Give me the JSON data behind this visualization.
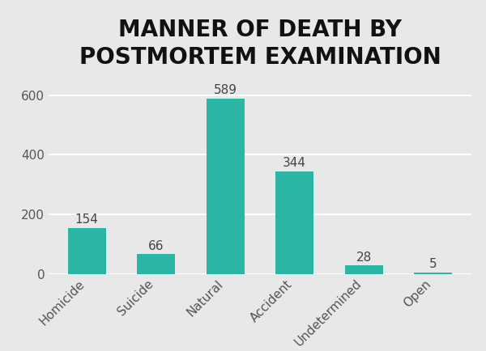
{
  "title_line1": "MANNER OF DEATH BY",
  "title_line2": "POSTMORTEM EXAMINATION",
  "categories": [
    "Homicide",
    "Suicide",
    "Natural",
    "Accident",
    "Undetermined",
    "Open"
  ],
  "values": [
    154,
    66,
    589,
    344,
    28,
    5
  ],
  "bar_color": "#2ab5a5",
  "background_color": "#e8e8e8",
  "plot_bg_color": "#e8e8e8",
  "title_fontsize": 20,
  "label_fontsize": 11,
  "value_fontsize": 11,
  "ytick_fontsize": 11,
  "yticks": [
    0,
    200,
    400,
    600
  ],
  "ylim": [
    0,
    660
  ],
  "grid_color": "#ffffff",
  "tick_label_color": "#555555",
  "title_color": "#111111",
  "bar_value_color": "#444444"
}
